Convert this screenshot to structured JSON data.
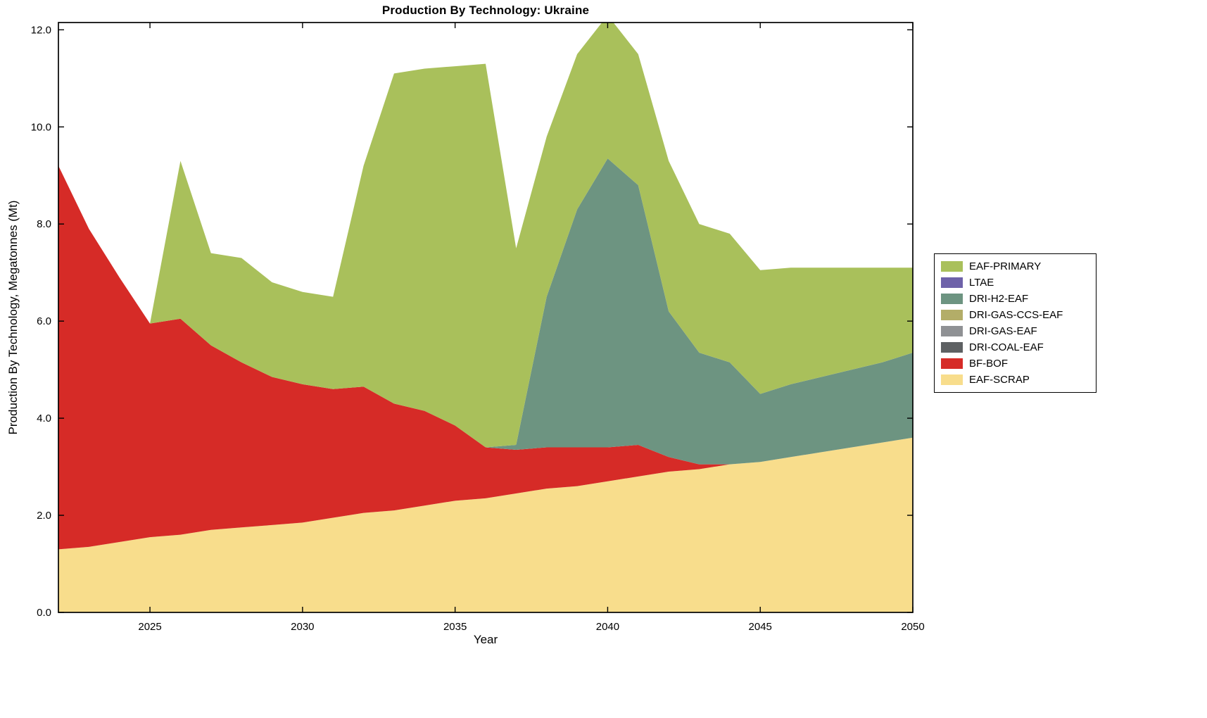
{
  "chart_data": {
    "type": "area",
    "stacked": true,
    "title": "Production By Technology: Ukraine",
    "xlabel": "Year",
    "ylabel": "Production By Technology, Megatonnes (Mt)",
    "grid": false,
    "legend_position": "right-outside",
    "xlim": [
      2022,
      2050
    ],
    "ylim": [
      0,
      12.15
    ],
    "xticks": [
      2025,
      2030,
      2035,
      2040,
      2045,
      2050
    ],
    "xtick_labels": [
      "2025",
      "2030",
      "2035",
      "2040",
      "2045",
      "2050"
    ],
    "yticks": [
      0,
      2,
      4,
      6,
      8,
      10,
      12
    ],
    "ytick_labels": [
      "0.0",
      "2.0",
      "4.0",
      "6.0",
      "8.0",
      "10.0",
      "12.0"
    ],
    "x": [
      2022,
      2023,
      2024,
      2025,
      2026,
      2027,
      2028,
      2029,
      2030,
      2031,
      2032,
      2033,
      2034,
      2035,
      2036,
      2037,
      2038,
      2039,
      2040,
      2041,
      2042,
      2043,
      2044,
      2045,
      2046,
      2047,
      2048,
      2049,
      2050
    ],
    "series": [
      {
        "name": "EAF-PRIMARY",
        "color": "#a9c05b",
        "values": [
          0,
          0,
          0,
          0,
          3.25,
          1.9,
          2.15,
          1.95,
          1.9,
          1.9,
          4.55,
          6.8,
          7.05,
          7.4,
          7.9,
          4.05,
          3.3,
          3.2,
          2.95,
          2.7,
          3.1,
          2.65,
          2.65,
          2.55,
          2.4,
          2.25,
          2.1,
          1.95,
          1.75
        ]
      },
      {
        "name": "LTAE",
        "color": "#6e62a9",
        "values": [
          0,
          0,
          0,
          0,
          0,
          0,
          0,
          0,
          0,
          0,
          0,
          0,
          0,
          0,
          0,
          0,
          0,
          0,
          0,
          0,
          0,
          0,
          0,
          0,
          0,
          0,
          0,
          0,
          0
        ]
      },
      {
        "name": "DRI-H2-EAF",
        "color": "#6d9481",
        "values": [
          0,
          0,
          0,
          0,
          0,
          0,
          0,
          0,
          0,
          0,
          0,
          0,
          0,
          0,
          0,
          0.1,
          3.1,
          4.9,
          5.95,
          5.35,
          3.0,
          2.3,
          2.1,
          1.4,
          1.5,
          1.55,
          1.6,
          1.65,
          1.75
        ]
      },
      {
        "name": "DRI-GAS-CCS-EAF",
        "color": "#b3ad68",
        "values": [
          0,
          0,
          0,
          0,
          0,
          0,
          0,
          0,
          0,
          0,
          0,
          0,
          0,
          0,
          0,
          0,
          0,
          0,
          0,
          0,
          0,
          0,
          0,
          0,
          0,
          0,
          0,
          0,
          0
        ]
      },
      {
        "name": "DRI-GAS-EAF",
        "color": "#8f9194",
        "values": [
          0,
          0,
          0,
          0,
          0,
          0,
          0,
          0,
          0,
          0,
          0,
          0,
          0,
          0,
          0,
          0,
          0,
          0,
          0,
          0,
          0,
          0,
          0,
          0,
          0,
          0,
          0,
          0,
          0
        ]
      },
      {
        "name": "DRI-COAL-EAF",
        "color": "#5e6163",
        "values": [
          0,
          0,
          0,
          0,
          0,
          0,
          0,
          0,
          0,
          0,
          0,
          0,
          0,
          0,
          0,
          0,
          0,
          0,
          0,
          0,
          0,
          0,
          0,
          0,
          0,
          0,
          0,
          0,
          0
        ]
      },
      {
        "name": "BF-BOF",
        "color": "#d62b27",
        "values": [
          7.9,
          6.55,
          5.45,
          4.4,
          4.45,
          3.8,
          3.4,
          3.05,
          2.85,
          2.65,
          2.6,
          2.2,
          1.95,
          1.55,
          1.05,
          0.9,
          0.85,
          0.8,
          0.7,
          0.65,
          0.3,
          0.1,
          0,
          0,
          0,
          0,
          0,
          0,
          0
        ]
      },
      {
        "name": "EAF-SCRAP",
        "color": "#f8dd8c",
        "values": [
          1.3,
          1.35,
          1.45,
          1.55,
          1.6,
          1.7,
          1.75,
          1.8,
          1.85,
          1.95,
          2.05,
          2.1,
          2.2,
          2.3,
          2.35,
          2.45,
          2.55,
          2.6,
          2.7,
          2.8,
          2.9,
          2.95,
          3.05,
          3.1,
          3.2,
          3.3,
          3.4,
          3.5,
          3.6
        ]
      }
    ]
  },
  "axes": {
    "frame_color": "#000000",
    "tick_color": "#000000"
  }
}
